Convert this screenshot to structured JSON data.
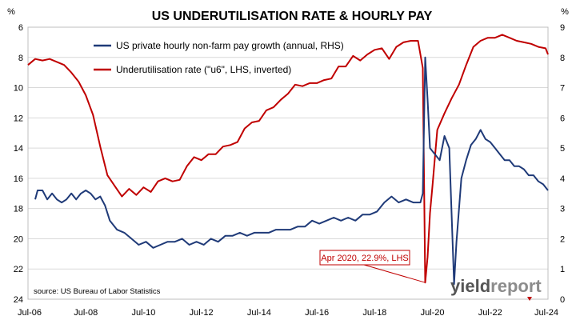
{
  "chart_data": {
    "type": "line",
    "title": "US UNDERUTILISATION RATE & HOURLY PAY",
    "left_axis": {
      "unit": "%",
      "ticks": [
        6,
        8,
        10,
        12,
        14,
        16,
        18,
        20,
        22,
        24
      ],
      "range": [
        6,
        24
      ],
      "inverted": true
    },
    "right_axis": {
      "unit": "%",
      "ticks": [
        0,
        1,
        2,
        3,
        4,
        5,
        6,
        7,
        8,
        9
      ],
      "range": [
        0,
        9
      ]
    },
    "x_axis": {
      "ticks": [
        "Jul-06",
        "Jul-08",
        "Jul-10",
        "Jul-12",
        "Jul-14",
        "Jul-16",
        "Jul-18",
        "Jul-20",
        "Jul-22",
        "Jul-24"
      ],
      "range": [
        "2006-07",
        "2024-07"
      ]
    },
    "grid": true,
    "legend_position": "top-center",
    "series": [
      {
        "name": "US private hourly non-farm pay growth (annual, RHS)",
        "axis": "right",
        "color": "#1f3a78",
        "points": [
          [
            "2006-10",
            3.3
          ],
          [
            "2006-11",
            3.6
          ],
          [
            "2007-01",
            3.6
          ],
          [
            "2007-03",
            3.3
          ],
          [
            "2007-05",
            3.5
          ],
          [
            "2007-07",
            3.3
          ],
          [
            "2007-09",
            3.2
          ],
          [
            "2007-11",
            3.3
          ],
          [
            "2008-01",
            3.5
          ],
          [
            "2008-03",
            3.3
          ],
          [
            "2008-05",
            3.5
          ],
          [
            "2008-07",
            3.6
          ],
          [
            "2008-09",
            3.5
          ],
          [
            "2008-11",
            3.3
          ],
          [
            "2009-01",
            3.4
          ],
          [
            "2009-03",
            3.1
          ],
          [
            "2009-05",
            2.6
          ],
          [
            "2009-08",
            2.3
          ],
          [
            "2009-11",
            2.2
          ],
          [
            "2010-02",
            2.0
          ],
          [
            "2010-05",
            1.8
          ],
          [
            "2010-08",
            1.9
          ],
          [
            "2010-11",
            1.7
          ],
          [
            "2011-02",
            1.8
          ],
          [
            "2011-05",
            1.9
          ],
          [
            "2011-08",
            1.9
          ],
          [
            "2011-11",
            2.0
          ],
          [
            "2012-02",
            1.8
          ],
          [
            "2012-05",
            1.9
          ],
          [
            "2012-08",
            1.8
          ],
          [
            "2012-11",
            2.0
          ],
          [
            "2013-02",
            1.9
          ],
          [
            "2013-05",
            2.1
          ],
          [
            "2013-08",
            2.1
          ],
          [
            "2013-11",
            2.2
          ],
          [
            "2014-02",
            2.1
          ],
          [
            "2014-05",
            2.2
          ],
          [
            "2014-08",
            2.2
          ],
          [
            "2014-11",
            2.2
          ],
          [
            "2015-02",
            2.3
          ],
          [
            "2015-05",
            2.3
          ],
          [
            "2015-08",
            2.3
          ],
          [
            "2015-11",
            2.4
          ],
          [
            "2016-02",
            2.4
          ],
          [
            "2016-05",
            2.6
          ],
          [
            "2016-08",
            2.5
          ],
          [
            "2016-11",
            2.6
          ],
          [
            "2017-02",
            2.7
          ],
          [
            "2017-05",
            2.6
          ],
          [
            "2017-08",
            2.7
          ],
          [
            "2017-11",
            2.6
          ],
          [
            "2018-02",
            2.8
          ],
          [
            "2018-05",
            2.8
          ],
          [
            "2018-08",
            2.9
          ],
          [
            "2018-11",
            3.2
          ],
          [
            "2019-02",
            3.4
          ],
          [
            "2019-05",
            3.2
          ],
          [
            "2019-08",
            3.3
          ],
          [
            "2019-11",
            3.2
          ],
          [
            "2020-02",
            3.2
          ],
          [
            "2020-03",
            3.5
          ],
          [
            "2020-04",
            8.0
          ],
          [
            "2020-05",
            6.6
          ],
          [
            "2020-06",
            5.0
          ],
          [
            "2020-08",
            4.8
          ],
          [
            "2020-10",
            4.6
          ],
          [
            "2020-12",
            5.4
          ],
          [
            "2021-02",
            5.0
          ],
          [
            "2021-04",
            0.5
          ],
          [
            "2021-05",
            1.9
          ],
          [
            "2021-07",
            4.0
          ],
          [
            "2021-09",
            4.6
          ],
          [
            "2021-11",
            5.1
          ],
          [
            "2022-01",
            5.3
          ],
          [
            "2022-03",
            5.6
          ],
          [
            "2022-05",
            5.3
          ],
          [
            "2022-07",
            5.2
          ],
          [
            "2022-09",
            5.0
          ],
          [
            "2022-11",
            4.8
          ],
          [
            "2023-01",
            4.6
          ],
          [
            "2023-03",
            4.6
          ],
          [
            "2023-05",
            4.4
          ],
          [
            "2023-07",
            4.4
          ],
          [
            "2023-09",
            4.3
          ],
          [
            "2023-11",
            4.1
          ],
          [
            "2024-01",
            4.1
          ],
          [
            "2024-03",
            3.9
          ],
          [
            "2024-05",
            3.8
          ],
          [
            "2024-07",
            3.6
          ]
        ]
      },
      {
        "name": "Underutilisation rate (\"u6\", LHS, inverted)",
        "axis": "left",
        "color": "#c00000",
        "points": [
          [
            "2006-07",
            8.5
          ],
          [
            "2006-10",
            8.1
          ],
          [
            "2007-01",
            8.2
          ],
          [
            "2007-04",
            8.1
          ],
          [
            "2007-07",
            8.3
          ],
          [
            "2007-10",
            8.5
          ],
          [
            "2008-01",
            9.0
          ],
          [
            "2008-04",
            9.6
          ],
          [
            "2008-07",
            10.5
          ],
          [
            "2008-10",
            11.8
          ],
          [
            "2009-01",
            13.9
          ],
          [
            "2009-04",
            15.8
          ],
          [
            "2009-07",
            16.5
          ],
          [
            "2009-10",
            17.2
          ],
          [
            "2010-01",
            16.7
          ],
          [
            "2010-04",
            17.1
          ],
          [
            "2010-07",
            16.6
          ],
          [
            "2010-10",
            16.9
          ],
          [
            "2011-01",
            16.2
          ],
          [
            "2011-04",
            16.0
          ],
          [
            "2011-07",
            16.2
          ],
          [
            "2011-10",
            16.1
          ],
          [
            "2012-01",
            15.2
          ],
          [
            "2012-04",
            14.6
          ],
          [
            "2012-07",
            14.8
          ],
          [
            "2012-10",
            14.4
          ],
          [
            "2013-01",
            14.4
          ],
          [
            "2013-04",
            13.9
          ],
          [
            "2013-07",
            13.8
          ],
          [
            "2013-10",
            13.6
          ],
          [
            "2014-01",
            12.7
          ],
          [
            "2014-04",
            12.3
          ],
          [
            "2014-07",
            12.2
          ],
          [
            "2014-10",
            11.5
          ],
          [
            "2015-01",
            11.3
          ],
          [
            "2015-04",
            10.8
          ],
          [
            "2015-07",
            10.4
          ],
          [
            "2015-10",
            9.8
          ],
          [
            "2016-01",
            9.9
          ],
          [
            "2016-04",
            9.7
          ],
          [
            "2016-07",
            9.7
          ],
          [
            "2016-10",
            9.5
          ],
          [
            "2017-01",
            9.4
          ],
          [
            "2017-04",
            8.6
          ],
          [
            "2017-07",
            8.6
          ],
          [
            "2017-10",
            7.9
          ],
          [
            "2018-01",
            8.2
          ],
          [
            "2018-04",
            7.8
          ],
          [
            "2018-07",
            7.5
          ],
          [
            "2018-10",
            7.4
          ],
          [
            "2019-01",
            8.1
          ],
          [
            "2019-04",
            7.3
          ],
          [
            "2019-07",
            7.0
          ],
          [
            "2019-10",
            6.9
          ],
          [
            "2020-01",
            6.9
          ],
          [
            "2020-03",
            8.7
          ],
          [
            "2020-04",
            22.9
          ],
          [
            "2020-05",
            21.2
          ],
          [
            "2020-06",
            18.3
          ],
          [
            "2020-07",
            16.5
          ],
          [
            "2020-09",
            12.8
          ],
          [
            "2020-12",
            11.7
          ],
          [
            "2021-03",
            10.7
          ],
          [
            "2021-06",
            9.8
          ],
          [
            "2021-09",
            8.5
          ],
          [
            "2021-12",
            7.3
          ],
          [
            "2022-03",
            6.9
          ],
          [
            "2022-06",
            6.7
          ],
          [
            "2022-09",
            6.7
          ],
          [
            "2022-12",
            6.5
          ],
          [
            "2023-03",
            6.7
          ],
          [
            "2023-06",
            6.9
          ],
          [
            "2023-09",
            7.0
          ],
          [
            "2023-12",
            7.1
          ],
          [
            "2024-03",
            7.3
          ],
          [
            "2024-06",
            7.4
          ],
          [
            "2024-07",
            7.8
          ]
        ]
      }
    ],
    "annotation": {
      "text": "Apr 2020, 22.9%, LHS",
      "x": "2020-04",
      "y": 22.9,
      "axis": "left"
    },
    "source": "source: US Bureau of Labor Statistics",
    "logo": {
      "part1": "yield",
      "part2": "report"
    }
  }
}
